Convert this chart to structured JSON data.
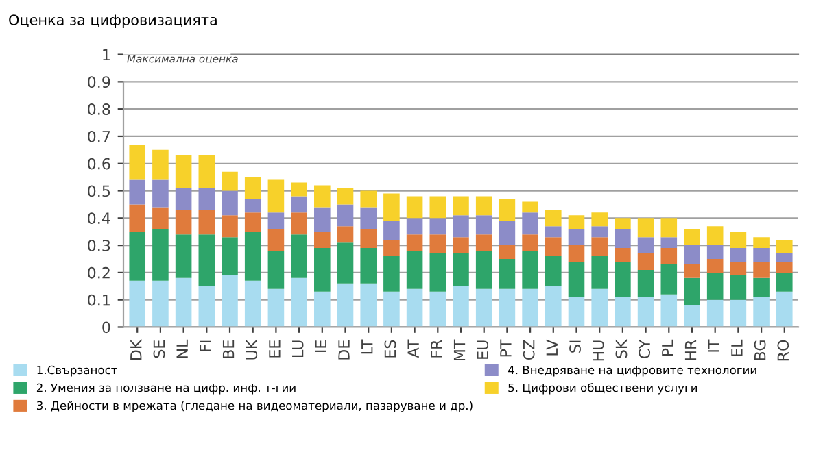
{
  "chart_data": {
    "type": "bar",
    "stacked": true,
    "title": "Оценка за цифровизацията",
    "categories": [
      "DK",
      "SE",
      "NL",
      "FI",
      "BE",
      "UK",
      "EE",
      "LU",
      "IE",
      "DE",
      "LT",
      "ES",
      "AT",
      "FR",
      "MT",
      "EU",
      "PT",
      "CZ",
      "LV",
      "SI",
      "HU",
      "SK",
      "CY",
      "PL",
      "HR",
      "IT",
      "EL",
      "BG",
      "RO"
    ],
    "series": [
      {
        "name": "1.Свързаност",
        "color": "#a8dcf0",
        "values": [
          0.17,
          0.17,
          0.18,
          0.15,
          0.19,
          0.17,
          0.14,
          0.18,
          0.13,
          0.16,
          0.16,
          0.13,
          0.14,
          0.13,
          0.15,
          0.14,
          0.14,
          0.14,
          0.15,
          0.11,
          0.14,
          0.11,
          0.11,
          0.12,
          0.08,
          0.1,
          0.1,
          0.11,
          0.13
        ]
      },
      {
        "name": "2. Умения за ползване на цифр. инф. т-гии",
        "color": "#2ea56a",
        "values": [
          0.18,
          0.19,
          0.16,
          0.19,
          0.14,
          0.18,
          0.14,
          0.16,
          0.16,
          0.15,
          0.13,
          0.13,
          0.14,
          0.14,
          0.12,
          0.14,
          0.11,
          0.14,
          0.11,
          0.13,
          0.12,
          0.13,
          0.1,
          0.11,
          0.1,
          0.1,
          0.09,
          0.07,
          0.07
        ]
      },
      {
        "name": "3. Дейности в мрежата (гледане на видеоматериали, пазаруване и др.)",
        "color": "#e07b3c",
        "values": [
          0.1,
          0.08,
          0.09,
          0.09,
          0.08,
          0.07,
          0.08,
          0.08,
          0.06,
          0.06,
          0.07,
          0.06,
          0.06,
          0.07,
          0.06,
          0.06,
          0.05,
          0.06,
          0.07,
          0.06,
          0.07,
          0.05,
          0.06,
          0.06,
          0.05,
          0.05,
          0.05,
          0.06,
          0.04
        ]
      },
      {
        "name": "4. Внедряване на цифровите технологии",
        "color": "#8c8cc8",
        "values": [
          0.09,
          0.1,
          0.08,
          0.08,
          0.09,
          0.05,
          0.06,
          0.06,
          0.09,
          0.08,
          0.08,
          0.07,
          0.06,
          0.06,
          0.08,
          0.07,
          0.09,
          0.08,
          0.04,
          0.06,
          0.04,
          0.07,
          0.06,
          0.04,
          0.07,
          0.05,
          0.05,
          0.05,
          0.03
        ]
      },
      {
        "name": "5. Цифрови обществени услуги",
        "color": "#f7d12a",
        "values": [
          0.13,
          0.11,
          0.12,
          0.12,
          0.07,
          0.08,
          0.12,
          0.05,
          0.08,
          0.06,
          0.06,
          0.1,
          0.08,
          0.08,
          0.07,
          0.07,
          0.08,
          0.04,
          0.06,
          0.05,
          0.05,
          0.04,
          0.07,
          0.07,
          0.06,
          0.07,
          0.06,
          0.04,
          0.05
        ]
      }
    ],
    "ylim": [
      0,
      1
    ],
    "yticks": [
      0,
      0.1,
      0.2,
      0.3,
      0.4,
      0.5,
      0.6,
      0.7,
      0.8,
      0.9,
      1
    ],
    "grid": "y",
    "legend": "bottom",
    "ref_lines": [
      {
        "axis": "y",
        "value": 1,
        "label": "Максимална оценка",
        "color": "#808080"
      }
    ]
  }
}
